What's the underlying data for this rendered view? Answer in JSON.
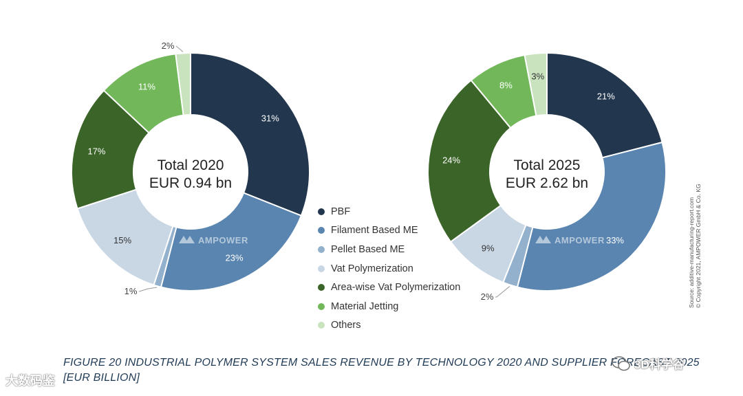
{
  "chart_data": [
    {
      "type": "pie",
      "style": "donut",
      "year": "2020",
      "center_lines": [
        "Total 2020",
        "EUR 0.94 bn"
      ],
      "slices": [
        {
          "name": "PBF",
          "value": 31,
          "label": "31%"
        },
        {
          "name": "Filament Based ME",
          "value": 23,
          "label": "23%"
        },
        {
          "name": "Pellet Based ME",
          "value": 1,
          "label": "1%"
        },
        {
          "name": "Vat Polymerization",
          "value": 15,
          "label": "15%"
        },
        {
          "name": "Area-wise Vat Polymerization",
          "value": 17,
          "label": "17%"
        },
        {
          "name": "Material Jetting",
          "value": 11,
          "label": "11%"
        },
        {
          "name": "Others",
          "value": 2,
          "label": "2%"
        }
      ]
    },
    {
      "type": "pie",
      "style": "donut",
      "year": "2025",
      "center_lines": [
        "Total 2025",
        "EUR 2.62 bn"
      ],
      "slices": [
        {
          "name": "PBF",
          "value": 21,
          "label": "21%"
        },
        {
          "name": "Filament Based ME",
          "value": 33,
          "label": "33%"
        },
        {
          "name": "Pellet Based ME",
          "value": 2,
          "label": "2%"
        },
        {
          "name": "Vat Polymerization",
          "value": 9,
          "label": "9%"
        },
        {
          "name": "Area-wise Vat Polymerization",
          "value": 24,
          "label": "24%"
        },
        {
          "name": "Material Jetting",
          "value": 8,
          "label": "8%"
        },
        {
          "name": "Others",
          "value": 3,
          "label": "3%"
        }
      ]
    }
  ],
  "legend": [
    {
      "name": "PBF",
      "color": "#22364d"
    },
    {
      "name": "Filament Based ME",
      "color": "#5a85b0"
    },
    {
      "name": "Pellet Based ME",
      "color": "#93b0cc"
    },
    {
      "name": "Vat Polymerization",
      "color": "#c9d7e5"
    },
    {
      "name": "Area-wise Vat Polymerization",
      "color": "#3b6428"
    },
    {
      "name": "Material Jetting",
      "color": "#72b85a"
    },
    {
      "name": "Others",
      "color": "#c9e3bf"
    }
  ],
  "watermark": "AMPOWER",
  "source_lines": [
    "Source: additive-manufacturing-report.com",
    "© Copyright  2021,  AMPOWER GmbH & Co.  KG"
  ],
  "caption": "FIGURE 20 INDUSTRIAL POLYMER SYSTEM SALES REVENUE BY TECHNOLOGY 2020 AND SUPPLIER FORECAST 2025 [EUR BILLION]",
  "overlay_left": "大数码鉴",
  "overlay_right": "3D科学谷"
}
